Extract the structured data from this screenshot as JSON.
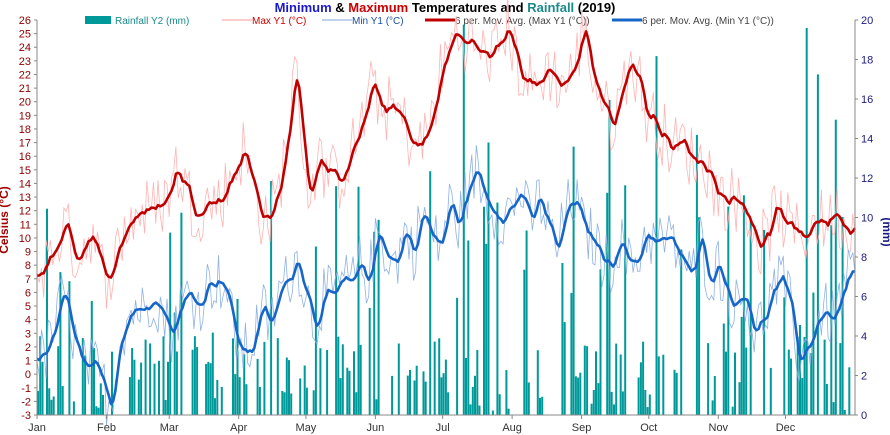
{
  "chart_data": {
    "type": "line",
    "title_parts": [
      {
        "text": "Minimum",
        "color": "#1a1acc"
      },
      {
        "text": " & ",
        "color": "#000000"
      },
      {
        "text": "Maximum",
        "color": "#cc0000"
      },
      {
        "text": " Temperatures and ",
        "color": "#000000"
      },
      {
        "text": "Rainfall",
        "color": "#1a8a8a"
      },
      {
        "text": " (2019)",
        "color": "#000000"
      }
    ],
    "ylabel_left": "Celsius (°C)",
    "ylabel_right": "(mm)",
    "y_left_range": [
      -3,
      26
    ],
    "y_left_ticks": [
      -3,
      -2,
      -1,
      0,
      1,
      2,
      3,
      4,
      5,
      6,
      7,
      8,
      9,
      10,
      11,
      12,
      13,
      14,
      15,
      16,
      17,
      18,
      19,
      20,
      21,
      22,
      23,
      24,
      25,
      26
    ],
    "y_right_range": [
      0,
      20
    ],
    "y_right_ticks": [
      0,
      2,
      4,
      6,
      8,
      10,
      12,
      14,
      16,
      18,
      20
    ],
    "x_ticks": [
      {
        "label": "Jan",
        "day": 0
      },
      {
        "label": "Feb",
        "day": 31
      },
      {
        "label": "Mar",
        "day": 59
      },
      {
        "label": "Apr",
        "day": 90
      },
      {
        "label": "May",
        "day": 120
      },
      {
        "label": "Jun",
        "day": 151
      },
      {
        "label": "Jul",
        "day": 181
      },
      {
        "label": "Aug",
        "day": 212
      },
      {
        "label": "Sep",
        "day": 243
      },
      {
        "label": "Oct",
        "day": 273
      },
      {
        "label": "Nov",
        "day": 304
      },
      {
        "label": "Dec",
        "day": 334
      }
    ],
    "x_range": [
      0,
      365
    ],
    "legend": [
      {
        "label": "Rainfall Y2 (mm)",
        "color": "#009999",
        "kind": "bar",
        "text_color": "#1a8a8a"
      },
      {
        "label": "Max Y1 (°C)",
        "color": "#ff9999",
        "kind": "thin",
        "text_color": "#cc0000"
      },
      {
        "label": "Min Y1 (°C)",
        "color": "#7fa6dd",
        "kind": "thin",
        "text_color": "#1a4fa0"
      },
      {
        "label": "6 per. Mov. Avg. (Max Y1 (°C))",
        "color": "#c00000",
        "kind": "thick",
        "text_color": "#444444"
      },
      {
        "label": "6 per. Mov. Avg. (Min Y1 (°C))",
        "color": "#1666c8",
        "kind": "thick",
        "text_color": "#444444"
      }
    ],
    "max_avg_anchors": [
      [
        0,
        7.2
      ],
      [
        6,
        8.5
      ],
      [
        12,
        11
      ],
      [
        18,
        8.5
      ],
      [
        24,
        10.5
      ],
      [
        30,
        7
      ],
      [
        34,
        8
      ],
      [
        40,
        11
      ],
      [
        46,
        12
      ],
      [
        52,
        12
      ],
      [
        58,
        13
      ],
      [
        62,
        15
      ],
      [
        66,
        14
      ],
      [
        70,
        12
      ],
      [
        76,
        12.5
      ],
      [
        82,
        12.8
      ],
      [
        88,
        15
      ],
      [
        92,
        16.5
      ],
      [
        96,
        14
      ],
      [
        100,
        11.8
      ],
      [
        104,
        11.5
      ],
      [
        108,
        13.5
      ],
      [
        112,
        18
      ],
      [
        115,
        22
      ],
      [
        118,
        18.5
      ],
      [
        121,
        13
      ],
      [
        125,
        15.5
      ],
      [
        130,
        15
      ],
      [
        134,
        14
      ],
      [
        138,
        15.5
      ],
      [
        142,
        17
      ],
      [
        146,
        19
      ],
      [
        150,
        21.2
      ],
      [
        154,
        19.5
      ],
      [
        158,
        19.5
      ],
      [
        162,
        19
      ],
      [
        166,
        17.5
      ],
      [
        170,
        16.5
      ],
      [
        175,
        18
      ],
      [
        180,
        22
      ],
      [
        186,
        25
      ],
      [
        192,
        24.5
      ],
      [
        198,
        23.5
      ],
      [
        204,
        23.5
      ],
      [
        210,
        25.5
      ],
      [
        216,
        22
      ],
      [
        222,
        21
      ],
      [
        228,
        22.5
      ],
      [
        234,
        21.2
      ],
      [
        240,
        22.5
      ],
      [
        244,
        25.5
      ],
      [
        248,
        22
      ],
      [
        252,
        20
      ],
      [
        256,
        18.5
      ],
      [
        260,
        20
      ],
      [
        264,
        23
      ],
      [
        268,
        22
      ],
      [
        272,
        19
      ],
      [
        276,
        18.5
      ],
      [
        280,
        17.5
      ],
      [
        284,
        16.5
      ],
      [
        288,
        17
      ],
      [
        292,
        16
      ],
      [
        296,
        15.5
      ],
      [
        300,
        15
      ],
      [
        304,
        13
      ],
      [
        308,
        13
      ],
      [
        312,
        12.8
      ],
      [
        318,
        11.5
      ],
      [
        322,
        9.5
      ],
      [
        326,
        10
      ],
      [
        330,
        12.5
      ],
      [
        334,
        11
      ],
      [
        340,
        10.2
      ],
      [
        344,
        10.5
      ],
      [
        348,
        11.5
      ],
      [
        352,
        11
      ],
      [
        356,
        12
      ],
      [
        362,
        10.5
      ],
      [
        365,
        11
      ]
    ],
    "min_avg_anchors": [
      [
        0,
        1.2
      ],
      [
        4,
        1.5
      ],
      [
        8,
        3.5
      ],
      [
        12,
        6
      ],
      [
        16,
        3
      ],
      [
        20,
        0.5
      ],
      [
        26,
        0.5
      ],
      [
        30,
        -1
      ],
      [
        33,
        -2.5
      ],
      [
        36,
        2
      ],
      [
        40,
        4
      ],
      [
        44,
        5
      ],
      [
        48,
        4.5
      ],
      [
        52,
        6
      ],
      [
        56,
        4.5
      ],
      [
        60,
        3
      ],
      [
        64,
        5
      ],
      [
        68,
        6
      ],
      [
        72,
        5
      ],
      [
        76,
        6.5
      ],
      [
        80,
        7
      ],
      [
        84,
        6.5
      ],
      [
        88,
        3
      ],
      [
        92,
        1.5
      ],
      [
        96,
        2
      ],
      [
        100,
        5
      ],
      [
        104,
        3.5
      ],
      [
        108,
        6
      ],
      [
        112,
        7
      ],
      [
        116,
        8.5
      ],
      [
        120,
        6
      ],
      [
        124,
        3.5
      ],
      [
        128,
        6
      ],
      [
        132,
        5.5
      ],
      [
        136,
        7
      ],
      [
        140,
        6.5
      ],
      [
        144,
        8
      ],
      [
        148,
        7
      ],
      [
        152,
        10.3
      ],
      [
        156,
        9
      ],
      [
        160,
        8
      ],
      [
        164,
        10.5
      ],
      [
        168,
        9
      ],
      [
        172,
        12
      ],
      [
        176,
        10
      ],
      [
        180,
        9.5
      ],
      [
        184,
        12.5
      ],
      [
        188,
        11
      ],
      [
        192,
        13.5
      ],
      [
        196,
        15
      ],
      [
        200,
        13
      ],
      [
        204,
        12
      ],
      [
        208,
        11.5
      ],
      [
        212,
        12.3
      ],
      [
        216,
        13.5
      ],
      [
        220,
        11
      ],
      [
        224,
        13
      ],
      [
        228,
        11
      ],
      [
        232,
        9
      ],
      [
        236,
        12
      ],
      [
        240,
        13
      ],
      [
        244,
        10.5
      ],
      [
        248,
        10
      ],
      [
        252,
        8.5
      ],
      [
        256,
        8
      ],
      [
        260,
        10
      ],
      [
        264,
        8
      ],
      [
        268,
        8.5
      ],
      [
        272,
        10.5
      ],
      [
        276,
        9.5
      ],
      [
        280,
        10
      ],
      [
        284,
        9.5
      ],
      [
        288,
        8.5
      ],
      [
        292,
        7
      ],
      [
        296,
        10
      ],
      [
        300,
        7
      ],
      [
        304,
        8
      ],
      [
        308,
        6
      ],
      [
        312,
        5
      ],
      [
        316,
        6
      ],
      [
        320,
        3
      ],
      [
        324,
        4
      ],
      [
        328,
        6
      ],
      [
        332,
        7
      ],
      [
        336,
        5
      ],
      [
        340,
        1
      ],
      [
        344,
        2
      ],
      [
        348,
        4
      ],
      [
        352,
        4.5
      ],
      [
        356,
        4
      ],
      [
        360,
        6.5
      ],
      [
        365,
        7.5
      ]
    ]
  }
}
